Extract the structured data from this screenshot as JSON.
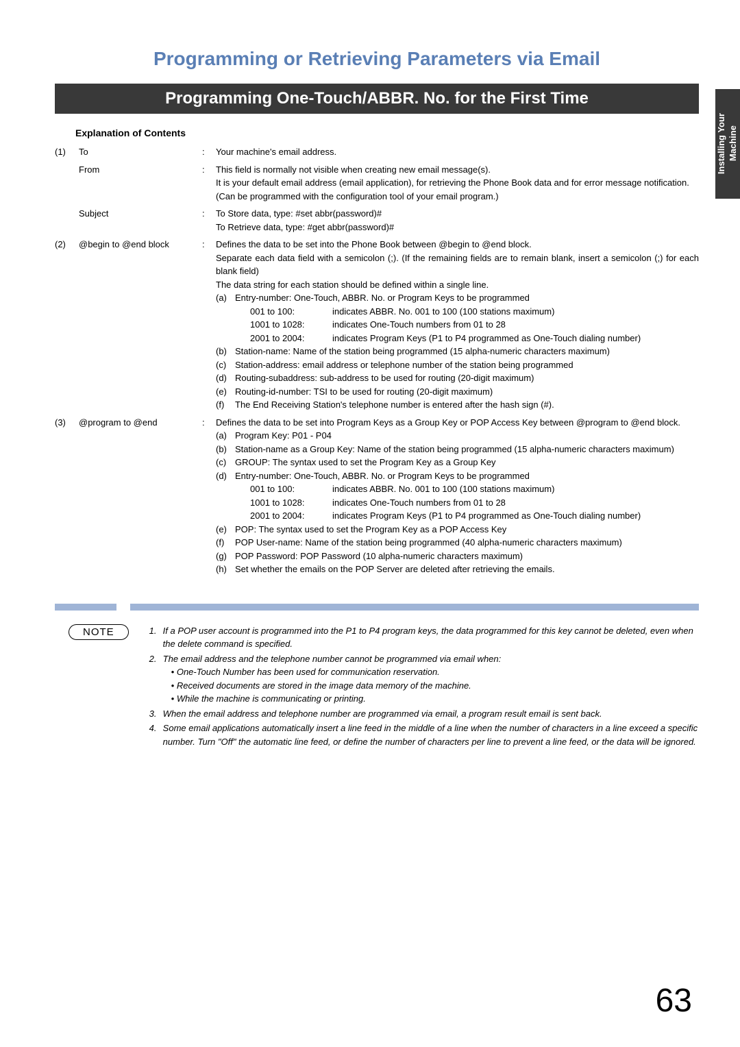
{
  "sideTab": "Installing Your\nMachine",
  "titleMain": "Programming or Retrieving Parameters via Email",
  "sectionBar": "Programming One-Touch/ABBR. No. for the First Time",
  "subHeading": "Explanation of Contents",
  "rows": [
    {
      "num": "(1)",
      "items": [
        {
          "label": "To",
          "desc": "Your machine's email address."
        },
        {
          "label": "From",
          "desc": "This field is normally not visible when creating new email message(s).\nIt is your default email address (email application), for retrieving the Phone Book data and for error message notification.\n(Can be programmed with the configuration tool of your email program.)"
        },
        {
          "label": "Subject",
          "desc": "To Store data, type: #set abbr(password)#\nTo Retrieve data, type: #get abbr(password)#"
        }
      ]
    },
    {
      "num": "(2)",
      "items": [
        {
          "label": "@begin to @end block",
          "descLines": [
            "Defines the data to be set into the Phone Book between @begin to @end block.",
            "Separate each data field with a semicolon (;). (If the remaining fields are to remain blank, insert a semicolon (;) for each blank field)",
            "The data string for each station should be defined within a single line."
          ],
          "subItems": [
            {
              "marker": "(a)",
              "text": "Entry-number:  One-Touch, ABBR. No. or Program Keys to be programmed",
              "indent": [
                {
                  "label": "001 to 100:",
                  "val": "indicates ABBR. No. 001 to 100 (100 stations maximum)"
                },
                {
                  "label": "1001 to 1028:",
                  "val": "indicates One-Touch numbers from 01 to 28"
                },
                {
                  "label": "2001 to 2004:",
                  "val": "indicates Program Keys (P1 to P4 programmed as One-Touch dialing number)"
                }
              ]
            },
            {
              "marker": "(b)",
              "text": "Station-name:  Name of the station being programmed (15 alpha-numeric characters maximum)"
            },
            {
              "marker": "(c)",
              "text": "Station-address:  email address or telephone number of the station being programmed"
            },
            {
              "marker": "(d)",
              "text": "Routing-subaddress:  sub-address to be used for routing (20-digit maximum)"
            },
            {
              "marker": "(e)",
              "text": "Routing-id-number:  TSI to be used for routing (20-digit maximum)"
            },
            {
              "marker": "(f)",
              "text": "The End Receiving Station's telephone number is entered after the hash sign (#)."
            }
          ]
        }
      ]
    },
    {
      "num": "(3)",
      "items": [
        {
          "label": "@program to @end",
          "descLines": [
            "Defines the data to be set into Program Keys as a Group Key or POP Access Key between @program to @end block."
          ],
          "subItems": [
            {
              "marker": "(a)",
              "text": "Program Key: P01 - P04"
            },
            {
              "marker": "(b)",
              "text": "Station-name as a Group Key: Name of the station being programmed (15 alpha-numeric characters maximum)"
            },
            {
              "marker": "(c)",
              "text": "GROUP: The syntax used to set the Program Key as a Group Key"
            },
            {
              "marker": "(d)",
              "text": "Entry-number: One-Touch, ABBR. No. or Program Keys to be programmed",
              "indent": [
                {
                  "label": "001 to 100:",
                  "val": "indicates ABBR. No. 001 to 100 (100 stations maximum)"
                },
                {
                  "label": "1001 to 1028:",
                  "val": "indicates One-Touch numbers from 01 to 28"
                },
                {
                  "label": "2001 to 2004:",
                  "val": "indicates Program Keys (P1 to P4 programmed as One-Touch dialing number)"
                }
              ]
            },
            {
              "marker": "(e)",
              "text": "POP: The syntax used to set the Program Key as a POP Access Key"
            },
            {
              "marker": "(f)",
              "text": "POP User-name: Name of the station being programmed (40 alpha-numeric characters maximum)"
            },
            {
              "marker": "(g)",
              "text": "POP Password: POP Password (10 alpha-numeric characters maximum)"
            },
            {
              "marker": "(h)",
              "text": "Set whether the emails on the POP Server are deleted after retrieving the emails."
            }
          ]
        }
      ]
    }
  ],
  "noteLabel": "NOTE",
  "notes": [
    {
      "marker": "1.",
      "text": "If a POP user account is programmed into the P1 to P4 program keys, the data programmed for this key cannot be deleted, even when the delete command is specified."
    },
    {
      "marker": "2.",
      "text": "The email address and the telephone number cannot be programmed via email when:",
      "bullets": [
        "One-Touch Number has been used for communication reservation.",
        "Received documents are stored in the image data memory of the machine.",
        "While the machine is communicating or printing."
      ]
    },
    {
      "marker": "3.",
      "text": "When the email address and telephone number are programmed via email, a program result email is sent back."
    },
    {
      "marker": "4.",
      "text": "Some email applications automatically insert a line feed in the middle of a line when the number of characters in a line exceed a specific number. Turn \"Off\" the automatic line feed, or define the number of characters per line to prevent a line feed, or the data will be ignored."
    }
  ],
  "pageNumber": "63"
}
